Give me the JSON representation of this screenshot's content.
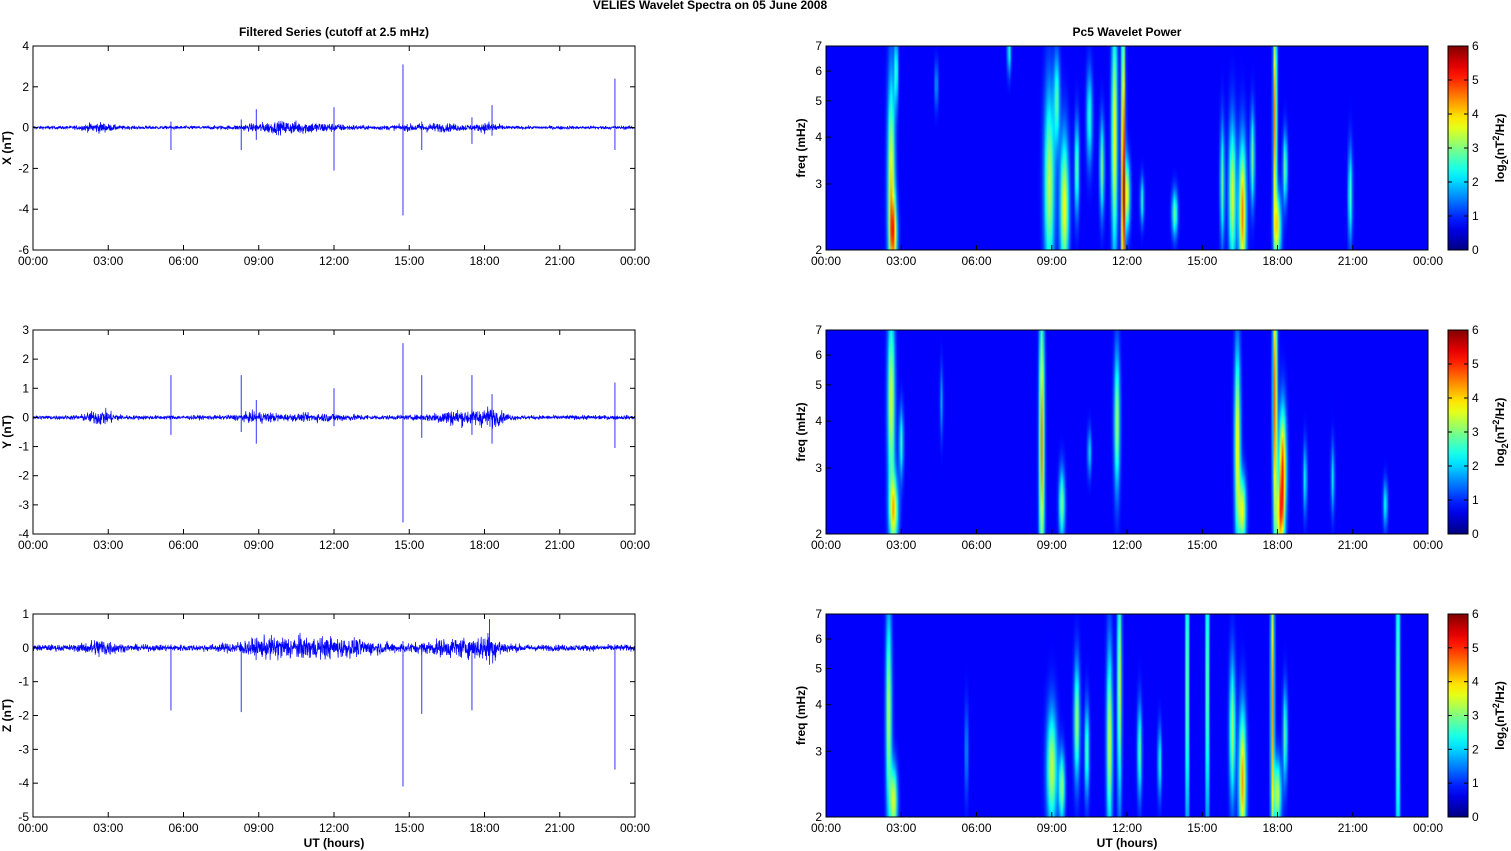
{
  "figure": {
    "suptitle": "VELIES Wavelet Spectra on 05 June      2008",
    "left_title": "Filtered Series (cutoff at 2.5 mHz)",
    "right_title": "Pc5 Wavelet Power"
  },
  "colors": {
    "trace": "#0000ff",
    "heat_background": "#00008f",
    "axis": "#000000",
    "colormap": "jet"
  },
  "chart_data": [
    {
      "type": "line",
      "ylabel": "X (nT)",
      "xlabel": "",
      "ylim": [
        -6,
        4
      ],
      "yticks": [
        "-6",
        "-4",
        "-2",
        "0",
        "2",
        "4"
      ],
      "x_ticklabels": [
        "00:00",
        "03:00",
        "06:00",
        "09:00",
        "12:00",
        "15:00",
        "18:00",
        "21:00",
        "00:00"
      ],
      "xlim_hours": [
        0,
        24
      ],
      "series": [
        {
          "base_noise": 0.08,
          "bursts": [
            [
              2.6,
              0.6,
              0.18
            ],
            [
              9.5,
              1.2,
              0.14
            ],
            [
              11.0,
              1.5,
              0.18
            ],
            [
              16.0,
              1.5,
              0.14
            ],
            [
              18.2,
              0.4,
              0.2
            ]
          ],
          "spikes": [
            [
              5.5,
              0.3,
              -1.1
            ],
            [
              8.3,
              0.4,
              -1.1
            ],
            [
              8.9,
              0.9,
              -0.6
            ],
            [
              12.0,
              1.0,
              -2.1
            ],
            [
              14.75,
              3.1,
              -4.3
            ],
            [
              15.5,
              0.3,
              -1.1
            ],
            [
              17.5,
              0.5,
              -0.8
            ],
            [
              18.3,
              1.1,
              -0.4
            ],
            [
              23.2,
              2.4,
              -1.1
            ]
          ]
        }
      ]
    },
    {
      "type": "line",
      "ylabel": "Y (nT)",
      "xlabel": "",
      "ylim": [
        -4,
        3
      ],
      "yticks": [
        "-4",
        "-3",
        "-2",
        "-1",
        "0",
        "1",
        "2",
        "3"
      ],
      "x_ticklabels": [
        "00:00",
        "03:00",
        "06:00",
        "09:00",
        "12:00",
        "15:00",
        "18:00",
        "21:00",
        "00:00"
      ],
      "xlim_hours": [
        0,
        24
      ],
      "series": [
        {
          "base_noise": 0.07,
          "bursts": [
            [
              2.7,
              0.6,
              0.2
            ],
            [
              9.0,
              0.8,
              0.12
            ],
            [
              16.8,
              1.0,
              0.2
            ],
            [
              18.2,
              0.6,
              0.25
            ],
            [
              11.5,
              1.5,
              0.08
            ]
          ],
          "spikes": [
            [
              5.5,
              1.45,
              -0.6
            ],
            [
              8.3,
              1.45,
              -0.5
            ],
            [
              8.9,
              0.6,
              -0.9
            ],
            [
              12.0,
              1.0,
              -0.3
            ],
            [
              14.75,
              2.55,
              -3.6
            ],
            [
              15.5,
              1.45,
              -0.7
            ],
            [
              17.5,
              1.45,
              -0.6
            ],
            [
              18.3,
              0.8,
              -0.9
            ],
            [
              23.2,
              1.2,
              -1.05
            ]
          ]
        }
      ]
    },
    {
      "type": "line",
      "ylabel": "Z (nT)",
      "xlabel": "UT (hours)",
      "ylim": [
        -5,
        1
      ],
      "yticks": [
        "-5",
        "-4",
        "-3",
        "-2",
        "-1",
        "0",
        "1"
      ],
      "x_ticklabels": [
        "00:00",
        "03:00",
        "06:00",
        "09:00",
        "12:00",
        "15:00",
        "18:00",
        "21:00",
        "00:00"
      ],
      "xlim_hours": [
        0,
        24
      ],
      "series": [
        {
          "base_noise": 0.09,
          "bursts": [
            [
              2.7,
              0.6,
              0.2
            ],
            [
              9.5,
              1.5,
              0.2
            ],
            [
              12.0,
              2.0,
              0.2
            ],
            [
              17.0,
              1.5,
              0.2
            ],
            [
              18.2,
              0.5,
              0.22
            ]
          ],
          "spikes": [
            [
              5.5,
              0.1,
              -1.85
            ],
            [
              8.3,
              0.1,
              -1.9
            ],
            [
              14.75,
              0.2,
              -4.1
            ],
            [
              15.5,
              0.1,
              -1.95
            ],
            [
              17.5,
              0.1,
              -1.85
            ],
            [
              18.2,
              0.85,
              -0.5
            ],
            [
              23.2,
              0.1,
              -3.6
            ]
          ]
        }
      ]
    },
    {
      "type": "heatmap",
      "ylabel": "freq (mHz)",
      "xlabel": "",
      "yscale": "log",
      "ylim": [
        2,
        7
      ],
      "yticks": [
        "2",
        "3",
        "4",
        "5",
        "6",
        "7"
      ],
      "x_ticklabels": [
        "00:00",
        "03:00",
        "06:00",
        "09:00",
        "12:00",
        "15:00",
        "18:00",
        "21:00",
        "00:00"
      ],
      "xlim_hours": [
        0,
        24
      ],
      "colorbar": {
        "label": "log2(nT2/Hz)",
        "ticks": [
          "0",
          "1",
          "2",
          "3",
          "4",
          "5",
          "6"
        ],
        "range": [
          0,
          6
        ]
      },
      "blobs": [
        [
          2.6,
          0.1,
          3.0,
          0.45,
          3.5
        ],
        [
          2.7,
          0.1,
          2.2,
          0.15,
          3.0
        ],
        [
          2.8,
          0.05,
          6.0,
          0.15,
          2.2
        ],
        [
          8.9,
          0.14,
          3.0,
          0.4,
          3.0
        ],
        [
          9.5,
          0.12,
          2.6,
          0.3,
          3.4
        ],
        [
          9.2,
          0.08,
          5.0,
          0.2,
          2.2
        ],
        [
          10.0,
          0.06,
          3.3,
          0.2,
          2.5
        ],
        [
          10.5,
          0.08,
          4.5,
          0.2,
          2.0
        ],
        [
          11.0,
          0.06,
          3.3,
          0.2,
          2.6
        ],
        [
          11.5,
          0.08,
          4.0,
          0.5,
          3.5
        ],
        [
          11.85,
          0.05,
          3.0,
          0.7,
          5.8
        ],
        [
          12.0,
          0.08,
          2.8,
          0.15,
          3.2
        ],
        [
          12.6,
          0.05,
          2.7,
          0.1,
          2.0
        ],
        [
          13.9,
          0.08,
          2.5,
          0.1,
          2.4
        ],
        [
          15.8,
          0.06,
          3.0,
          0.25,
          2.4
        ],
        [
          16.2,
          0.1,
          2.8,
          0.3,
          3.2
        ],
        [
          16.6,
          0.1,
          2.5,
          0.3,
          4.2
        ],
        [
          17.0,
          0.06,
          3.5,
          0.2,
          2.5
        ],
        [
          17.9,
          0.05,
          4.5,
          0.5,
          4.5
        ],
        [
          18.0,
          0.1,
          2.3,
          0.15,
          3.0
        ],
        [
          18.3,
          0.06,
          3.3,
          0.15,
          2.5
        ],
        [
          20.9,
          0.06,
          2.8,
          0.2,
          2.2
        ],
        [
          7.3,
          0.05,
          6.8,
          0.1,
          2.0
        ],
        [
          4.4,
          0.04,
          5.5,
          0.1,
          1.4
        ]
      ]
    },
    {
      "type": "heatmap",
      "ylabel": "freq (mHz)",
      "xlabel": "",
      "yscale": "log",
      "ylim": [
        2,
        7
      ],
      "yticks": [
        "2",
        "3",
        "4",
        "5",
        "6",
        "7"
      ],
      "x_ticklabels": [
        "00:00",
        "03:00",
        "06:00",
        "09:00",
        "12:00",
        "15:00",
        "18:00",
        "21:00",
        "00:00"
      ],
      "xlim_hours": [
        0,
        24
      ],
      "colorbar": {
        "label": "log2(nT2/Hz)",
        "ticks": [
          "0",
          "1",
          "2",
          "3",
          "4",
          "5",
          "6"
        ],
        "range": [
          0,
          6
        ]
      },
      "blobs": [
        [
          2.6,
          0.1,
          4.5,
          0.4,
          3.2
        ],
        [
          2.7,
          0.12,
          2.3,
          0.15,
          3.4
        ],
        [
          3.0,
          0.06,
          3.5,
          0.15,
          2.0
        ],
        [
          8.6,
          0.07,
          3.5,
          0.6,
          4.2
        ],
        [
          9.4,
          0.08,
          2.4,
          0.15,
          2.6
        ],
        [
          11.6,
          0.08,
          4.0,
          0.3,
          2.8
        ],
        [
          10.5,
          0.05,
          3.3,
          0.1,
          1.6
        ],
        [
          16.4,
          0.08,
          3.5,
          0.4,
          3.6
        ],
        [
          16.6,
          0.1,
          2.3,
          0.15,
          3.2
        ],
        [
          17.9,
          0.06,
          4.5,
          0.6,
          4.6
        ],
        [
          18.2,
          0.1,
          3.0,
          0.25,
          4.6
        ],
        [
          18.1,
          0.1,
          2.2,
          0.15,
          3.2
        ],
        [
          19.1,
          0.05,
          2.8,
          0.15,
          1.8
        ],
        [
          20.2,
          0.05,
          2.8,
          0.15,
          1.6
        ],
        [
          22.3,
          0.06,
          2.4,
          0.1,
          1.8
        ],
        [
          4.6,
          0.04,
          4.5,
          0.15,
          1.2
        ]
      ]
    },
    {
      "type": "heatmap",
      "ylabel": "freq (mHz)",
      "xlabel": "UT (hours)",
      "yscale": "log",
      "ylim": [
        2,
        7
      ],
      "yticks": [
        "2",
        "3",
        "4",
        "5",
        "6",
        "7"
      ],
      "x_ticklabels": [
        "00:00",
        "03:00",
        "06:00",
        "09:00",
        "12:00",
        "15:00",
        "18:00",
        "21:00",
        "00:00"
      ],
      "xlim_hours": [
        0,
        24
      ],
      "colorbar": {
        "label": "log2(nT2/Hz)",
        "ticks": [
          "0",
          "1",
          "2",
          "3",
          "4",
          "5",
          "6"
        ],
        "range": [
          0,
          6
        ]
      },
      "blobs": [
        [
          2.5,
          0.08,
          3.8,
          0.45,
          3.0
        ],
        [
          2.7,
          0.1,
          2.2,
          0.15,
          3.2
        ],
        [
          9.0,
          0.14,
          2.7,
          0.25,
          3.0
        ],
        [
          9.4,
          0.08,
          2.4,
          0.15,
          2.8
        ],
        [
          10.0,
          0.08,
          3.6,
          0.25,
          2.8
        ],
        [
          10.4,
          0.06,
          3.0,
          0.2,
          2.4
        ],
        [
          11.3,
          0.08,
          3.2,
          0.4,
          3.2
        ],
        [
          11.7,
          0.06,
          4.5,
          0.5,
          3.2
        ],
        [
          12.5,
          0.06,
          3.0,
          0.2,
          2.4
        ],
        [
          13.3,
          0.05,
          2.8,
          0.15,
          2.0
        ],
        [
          14.4,
          0.04,
          4.5,
          0.7,
          3.5
        ],
        [
          15.2,
          0.04,
          4.5,
          0.7,
          3.4
        ],
        [
          16.6,
          0.1,
          2.5,
          0.3,
          4.0
        ],
        [
          16.2,
          0.08,
          3.4,
          0.3,
          2.8
        ],
        [
          17.8,
          0.05,
          4.0,
          0.7,
          4.0
        ],
        [
          18.0,
          0.1,
          2.3,
          0.15,
          3.0
        ],
        [
          18.3,
          0.06,
          3.3,
          0.2,
          2.4
        ],
        [
          22.8,
          0.05,
          4.0,
          0.8,
          3.0
        ],
        [
          5.6,
          0.04,
          3.0,
          0.2,
          1.3
        ]
      ]
    }
  ]
}
